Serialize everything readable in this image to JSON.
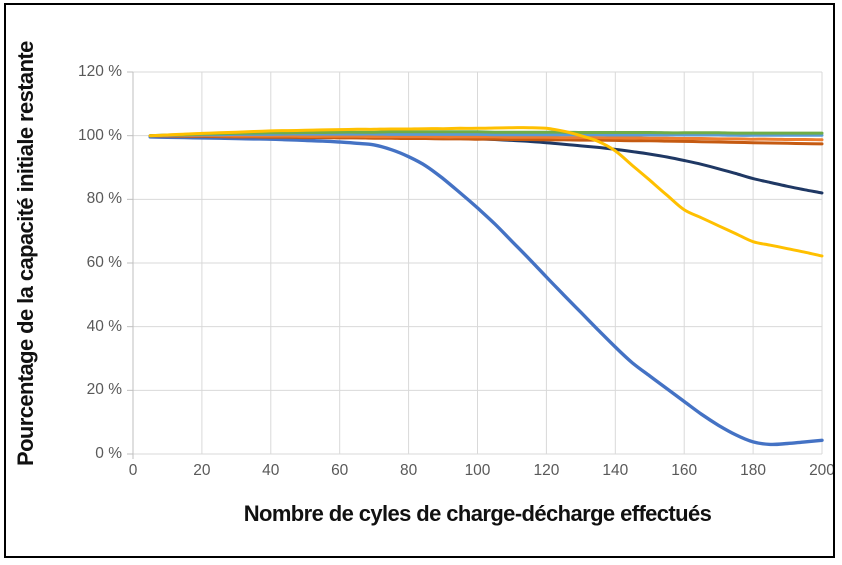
{
  "figure": {
    "background": "#ffffff",
    "border_color": "#000000",
    "gridline_color": "#d9d9d9",
    "axis_color": "#bfbfbf",
    "tick_text_color": "#595959"
  },
  "chart_data": {
    "type": "line",
    "title": "",
    "xlabel": "Nombre de cyles de charge-décharge effectués",
    "ylabel": "Pourcentage de la capacité initiale restante",
    "xlim": [
      0,
      200
    ],
    "ylim": [
      0,
      120
    ],
    "grid": true,
    "legend": "none",
    "x_ticks": [
      0,
      20,
      40,
      60,
      80,
      100,
      120,
      140,
      160,
      180,
      200
    ],
    "y_ticks": [
      0,
      20,
      40,
      60,
      80,
      100,
      120
    ],
    "y_tick_labels": [
      "0 %",
      "20 %",
      "40 %",
      "60 %",
      "80 %",
      "100 %",
      "120 %"
    ],
    "x": [
      5,
      10,
      15,
      20,
      25,
      30,
      35,
      40,
      45,
      50,
      55,
      60,
      65,
      70,
      75,
      80,
      85,
      90,
      95,
      100,
      105,
      110,
      115,
      120,
      125,
      130,
      135,
      140,
      145,
      150,
      155,
      160,
      165,
      170,
      175,
      180,
      185,
      190,
      195,
      200
    ],
    "series": [
      {
        "name": "bleu",
        "color": "#4472C4",
        "stroke_width": 3.4,
        "values": [
          99.6,
          99.5,
          99.4,
          99.3,
          99.2,
          99.1,
          99.0,
          98.9,
          98.7,
          98.5,
          98.3,
          98.0,
          97.6,
          97.1,
          95.6,
          93.4,
          90.5,
          86.5,
          82.0,
          77.3,
          72.3,
          66.8,
          61.3,
          55.6,
          50.0,
          44.5,
          39.0,
          33.6,
          28.6,
          24.5,
          20.5,
          16.5,
          12.5,
          9.0,
          6.0,
          3.8,
          3.0,
          3.3,
          3.8,
          4.3
        ]
      },
      {
        "name": "bleu-fonce",
        "color": "#1F3864",
        "stroke_width": 3,
        "values": [
          100,
          99.9,
          99.9,
          99.8,
          99.8,
          99.7,
          99.7,
          99.6,
          99.6,
          99.5,
          99.5,
          99.4,
          99.4,
          99.3,
          99.3,
          99.2,
          99.2,
          99.1,
          99.1,
          99.0,
          98.8,
          98.5,
          98.2,
          97.8,
          97.3,
          96.8,
          96.3,
          95.7,
          95.0,
          94.2,
          93.3,
          92.2,
          91.0,
          89.6,
          88.1,
          86.5,
          85.3,
          84.1,
          83.0,
          82.0
        ]
      },
      {
        "name": "brun",
        "color": "#C55A11",
        "stroke_width": 3,
        "values": [
          100,
          99.9,
          99.8,
          99.8,
          99.7,
          99.6,
          99.6,
          99.5,
          99.5,
          99.4,
          99.4,
          99.3,
          99.3,
          99.2,
          99.2,
          99.1,
          99.1,
          99.0,
          99.0,
          98.9,
          98.9,
          98.8,
          98.8,
          98.7,
          98.7,
          98.6,
          98.6,
          98.5,
          98.4,
          98.4,
          98.3,
          98.2,
          98.1,
          98.0,
          97.9,
          97.8,
          97.7,
          97.6,
          97.5,
          97.4
        ]
      },
      {
        "name": "orange",
        "color": "#ED7D31",
        "stroke_width": 3,
        "values": [
          100,
          100,
          100,
          100,
          100,
          99.9,
          99.9,
          99.9,
          99.9,
          99.8,
          99.8,
          99.8,
          99.8,
          99.7,
          99.7,
          99.7,
          99.7,
          99.6,
          99.6,
          99.6,
          99.6,
          99.5,
          99.5,
          99.5,
          99.4,
          99.4,
          99.4,
          99.3,
          99.3,
          99.2,
          99.2,
          99.1,
          99.1,
          99.0,
          99.0,
          98.9,
          98.9,
          98.8,
          98.8,
          98.7
        ]
      },
      {
        "name": "bleu-clair",
        "color": "#5B9BD5",
        "stroke_width": 3,
        "values": [
          100,
          100.1,
          100.2,
          100.3,
          100.3,
          100.4,
          100.4,
          100.4,
          100.5,
          100.5,
          100.5,
          100.5,
          100.5,
          100.5,
          100.4,
          100.4,
          100.4,
          100.4,
          100.4,
          100.4,
          100.3,
          100.3,
          100.3,
          100.3,
          100.3,
          100.3,
          100.3,
          100.2,
          100.2,
          100.2,
          100.2,
          100.2,
          100.2,
          100.2,
          100.1,
          100.1,
          100.1,
          100.1,
          100.1,
          100.1
        ]
      },
      {
        "name": "vert",
        "color": "#70AD47",
        "stroke_width": 3,
        "values": [
          100,
          100.2,
          100.3,
          100.5,
          100.6,
          100.7,
          100.8,
          100.9,
          100.9,
          101.0,
          101.0,
          101.1,
          101.1,
          101.1,
          101.2,
          101.2,
          101.2,
          101.2,
          101.2,
          101.2,
          101.1,
          101.1,
          101.1,
          101.1,
          101.1,
          101.0,
          101.0,
          101.0,
          101.0,
          101.0,
          100.9,
          100.9,
          100.9,
          100.9,
          100.8,
          100.8,
          100.8,
          100.8,
          100.8,
          100.8
        ]
      },
      {
        "name": "jaune",
        "color": "#FFC000",
        "stroke_width": 3,
        "values": [
          100,
          100.2,
          100.5,
          100.7,
          100.9,
          101.1,
          101.3,
          101.5,
          101.6,
          101.7,
          101.8,
          101.9,
          102.0,
          102.0,
          102.1,
          102.1,
          102.2,
          102.2,
          102.3,
          102.3,
          102.4,
          102.5,
          102.5,
          102.3,
          101.4,
          100.0,
          98.2,
          95.2,
          90.6,
          86.0,
          81.3,
          76.7,
          74.2,
          71.7,
          69.2,
          66.7,
          65.6,
          64.5,
          63.4,
          62.2
        ]
      }
    ]
  }
}
